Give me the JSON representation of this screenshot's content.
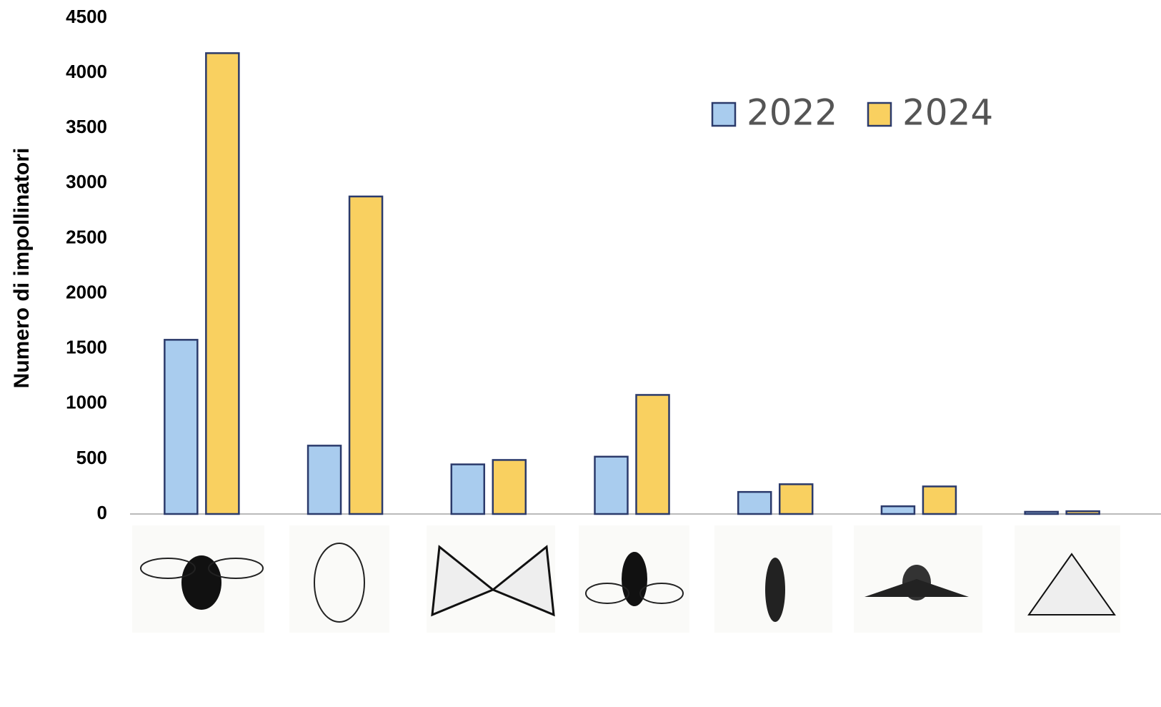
{
  "chart_data": {
    "type": "bar",
    "y_label": "Numero di impollinatori",
    "categories": [
      null,
      null,
      null,
      null,
      null,
      null,
      null
    ],
    "series": [
      {
        "name": "2022",
        "color": "#a9ccee",
        "values": [
          1580,
          620,
          450,
          520,
          200,
          70,
          20
        ]
      },
      {
        "name": "2024",
        "color": "#f9d060",
        "values": [
          4180,
          2880,
          490,
          1080,
          270,
          250,
          25
        ]
      }
    ],
    "ylim": [
      0,
      4500
    ],
    "yticks": [
      0,
      500,
      1000,
      1500,
      2000,
      2500,
      3000,
      3500,
      4000,
      4500
    ],
    "grid": false,
    "legend": "top-right"
  }
}
